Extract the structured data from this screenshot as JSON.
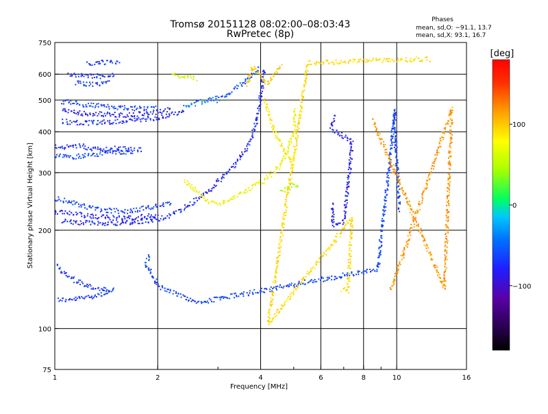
{
  "chart_data": {
    "type": "scatter",
    "title": "Tromsø 20151128 08:02:00–08:03:43",
    "subtitle": "RwPretec (8p)",
    "stats": {
      "heading": "Phases",
      "line1": "mean, sd,O: −91.1, 13.7",
      "line2": "mean, sd,X:  93.1, 16.7"
    },
    "xlabel": "Frequency [MHz]",
    "ylabel": "Stationary phase Virtual Height [km]",
    "x_scale": "log",
    "y_scale": "log",
    "xlim": [
      1,
      16
    ],
    "ylim": [
      75,
      750
    ],
    "x_ticks": [
      1,
      2,
      4,
      6,
      8,
      10,
      16
    ],
    "x_tick_labels": [
      "1",
      "2",
      "4",
      "6",
      "8",
      "10",
      "16"
    ],
    "x_minor_ticks": [
      3,
      5,
      7,
      9
    ],
    "y_ticks": [
      75,
      100,
      200,
      300,
      400,
      500,
      600,
      750
    ],
    "y_tick_labels": [
      "75",
      "100",
      "200",
      "300",
      "400",
      "500",
      "600",
      "750"
    ],
    "grid": true,
    "colorbar": {
      "label": "[deg]",
      "range": [
        -180,
        180
      ],
      "ticks": [
        100,
        0,
        -100
      ],
      "tick_labels": [
        "100",
        "0",
        "−100"
      ]
    },
    "traces": [
      {
        "phase": -90,
        "points": [
          [
            1.02,
            123
          ],
          [
            1.1,
            122
          ],
          [
            1.2,
            124
          ],
          [
            1.3,
            126
          ],
          [
            1.4,
            128
          ],
          [
            1.5,
            131
          ]
        ]
      },
      {
        "phase": -90,
        "points": [
          [
            1.02,
            155
          ],
          [
            1.08,
            145
          ],
          [
            1.15,
            140
          ],
          [
            1.25,
            135
          ],
          [
            1.35,
            132
          ],
          [
            1.45,
            131
          ]
        ]
      },
      {
        "phase": -95,
        "points": [
          [
            1.05,
            213
          ],
          [
            1.15,
            211
          ],
          [
            1.3,
            210
          ],
          [
            1.5,
            210
          ],
          [
            1.7,
            211
          ],
          [
            1.9,
            214
          ],
          [
            2.1,
            219
          ],
          [
            2.3,
            228
          ],
          [
            2.5,
            240
          ],
          [
            2.7,
            255
          ],
          [
            2.9,
            270
          ],
          [
            3.1,
            290
          ],
          [
            3.3,
            310
          ],
          [
            3.5,
            335
          ],
          [
            3.7,
            370
          ],
          [
            3.85,
            410
          ],
          [
            3.95,
            470
          ],
          [
            4.05,
            560
          ],
          [
            4.1,
            630
          ]
        ]
      },
      {
        "phase": -100,
        "points": [
          [
            1.0,
            228
          ],
          [
            1.1,
            225
          ],
          [
            1.25,
            221
          ],
          [
            1.45,
            218
          ],
          [
            1.65,
            218
          ],
          [
            1.85,
            220
          ],
          [
            2.0,
            223
          ]
        ]
      },
      {
        "phase": -85,
        "points": [
          [
            1.0,
            250
          ],
          [
            1.1,
            245
          ],
          [
            1.25,
            235
          ],
          [
            1.4,
            230
          ],
          [
            1.6,
            228
          ],
          [
            1.8,
            232
          ],
          [
            2.0,
            238
          ],
          [
            2.2,
            240
          ]
        ]
      },
      {
        "phase": -85,
        "points": [
          [
            1.0,
            340
          ],
          [
            1.1,
            335
          ],
          [
            1.2,
            337
          ],
          [
            1.35,
            342
          ],
          [
            1.5,
            348
          ],
          [
            1.7,
            345
          ]
        ]
      },
      {
        "phase": -95,
        "points": [
          [
            1.0,
            360
          ],
          [
            1.1,
            358
          ],
          [
            1.2,
            362
          ],
          [
            1.35,
            352
          ],
          [
            1.5,
            355
          ],
          [
            1.8,
            352
          ]
        ]
      },
      {
        "phase": -95,
        "points": [
          [
            1.05,
            430
          ],
          [
            1.2,
            425
          ],
          [
            1.4,
            428
          ],
          [
            1.6,
            432
          ],
          [
            1.8,
            436
          ],
          [
            2.0,
            442
          ],
          [
            2.2,
            452
          ],
          [
            2.4,
            465
          ]
        ]
      },
      {
        "phase": -100,
        "points": [
          [
            1.05,
            470
          ],
          [
            1.2,
            455
          ],
          [
            1.4,
            452
          ],
          [
            1.6,
            450
          ],
          [
            1.8,
            455
          ],
          [
            2.0,
            460
          ],
          [
            2.2,
            468
          ]
        ]
      },
      {
        "phase": -85,
        "points": [
          [
            1.05,
            495
          ],
          [
            1.2,
            485
          ],
          [
            1.4,
            478
          ],
          [
            1.6,
            474
          ],
          [
            1.8,
            470
          ],
          [
            2.0,
            474
          ]
        ]
      },
      {
        "phase": -90,
        "points": [
          [
            1.15,
            565
          ],
          [
            1.25,
            560
          ],
          [
            1.35,
            560
          ],
          [
            1.45,
            563
          ]
        ]
      },
      {
        "phase": -95,
        "points": [
          [
            1.1,
            600
          ],
          [
            1.25,
            595
          ],
          [
            1.4,
            590
          ],
          [
            1.5,
            595
          ]
        ]
      },
      {
        "phase": -90,
        "points": [
          [
            1.25,
            645
          ],
          [
            1.35,
            650
          ],
          [
            1.45,
            652
          ],
          [
            1.55,
            650
          ]
        ]
      },
      {
        "phase": -70,
        "points": [
          [
            2.4,
            480
          ],
          [
            2.6,
            490
          ],
          [
            2.8,
            500
          ],
          [
            3.0,
            510
          ]
        ]
      },
      {
        "phase": -80,
        "points": [
          [
            3.0,
            500
          ],
          [
            3.2,
            520
          ],
          [
            3.4,
            545
          ],
          [
            3.6,
            570
          ],
          [
            3.8,
            600
          ],
          [
            4.0,
            630
          ]
        ]
      },
      {
        "phase": 80,
        "points": [
          [
            2.4,
            285
          ],
          [
            2.6,
            260
          ],
          [
            2.8,
            245
          ],
          [
            3.0,
            240
          ],
          [
            3.3,
            250
          ],
          [
            3.6,
            262
          ],
          [
            3.9,
            275
          ],
          [
            4.2,
            290
          ],
          [
            4.5,
            310
          ],
          [
            4.8,
            350
          ],
          [
            5.0,
            400
          ],
          [
            5.05,
            470
          ]
        ]
      },
      {
        "phase": 90,
        "points": [
          [
            4.1,
            500
          ],
          [
            4.3,
            430
          ],
          [
            4.5,
            380
          ],
          [
            4.7,
            350
          ],
          [
            4.9,
            330
          ],
          [
            5.0,
            310
          ]
        ]
      },
      {
        "phase": 110,
        "points": [
          [
            3.65,
            560
          ],
          [
            3.75,
            600
          ],
          [
            3.8,
            630
          ],
          [
            4.2,
            560
          ],
          [
            4.4,
            600
          ],
          [
            4.6,
            640
          ]
        ]
      },
      {
        "phase": -100,
        "points": [
          [
            6.5,
            240
          ],
          [
            6.5,
            222
          ],
          [
            6.5,
            207
          ],
          [
            7.0,
            212
          ],
          [
            7.3,
            310
          ],
          [
            7.4,
            372
          ],
          [
            6.4,
            412
          ],
          [
            6.6,
            448
          ]
        ]
      },
      {
        "phase": 40,
        "points": [
          [
            4.6,
            262
          ],
          [
            5.0,
            275
          ],
          [
            5.2,
            268
          ]
        ]
      },
      {
        "phase": 60,
        "points": [
          [
            2.2,
            600
          ],
          [
            2.4,
            590
          ],
          [
            2.6,
            580
          ]
        ]
      },
      {
        "phase": 100,
        "points": [
          [
            6.9,
            132
          ],
          [
            7.2,
            130
          ],
          [
            7.4,
            220
          ],
          [
            7.1,
            205
          ],
          [
            4.2,
            103
          ],
          [
            5.5,
            650
          ],
          [
            12.5,
            667
          ]
        ]
      },
      {
        "phase": -85,
        "points": [
          [
            1.9,
            168
          ],
          [
            1.85,
            158
          ],
          [
            2.0,
            135
          ],
          [
            2.6,
            120
          ],
          [
            8.8,
            152
          ],
          [
            9.9,
            465
          ],
          [
            9.8,
            420
          ],
          [
            9.95,
            350
          ],
          [
            10.2,
            230
          ]
        ]
      },
      {
        "phase": 130,
        "points": [
          [
            8.5,
            435
          ],
          [
            13.8,
            133
          ],
          [
            14.5,
            470
          ],
          [
            9.6,
            130
          ]
        ]
      }
    ]
  }
}
